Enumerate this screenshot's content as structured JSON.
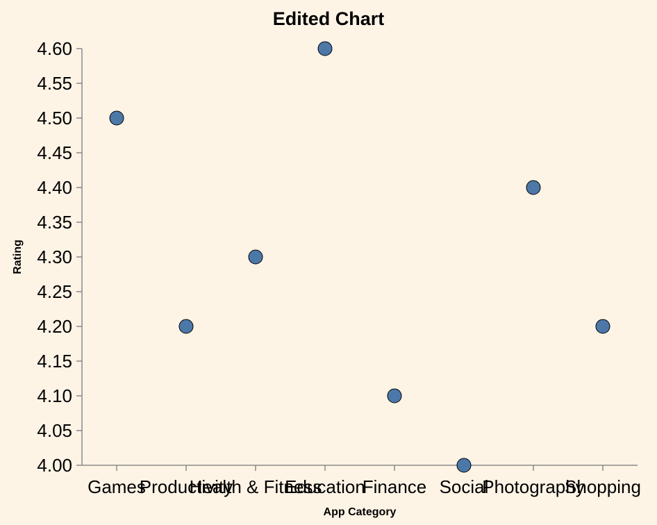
{
  "chart_data": {
    "type": "scatter",
    "title": "Edited Chart",
    "xlabel": "App Category",
    "ylabel": "Rating",
    "categories": [
      "Games",
      "Productivity",
      "Health & Fitness",
      "Education",
      "Finance",
      "Social",
      "Photography",
      "Shopping"
    ],
    "values": [
      4.5,
      4.2,
      4.3,
      4.6,
      4.1,
      4.0,
      4.4,
      4.2
    ],
    "ylim": [
      4.0,
      4.6
    ],
    "yticks": [
      "4.00",
      "4.05",
      "4.10",
      "4.15",
      "4.20",
      "4.25",
      "4.30",
      "4.35",
      "4.40",
      "4.45",
      "4.50",
      "4.55",
      "4.60"
    ],
    "grid": false,
    "colors": {
      "point": "#4c78a8",
      "background": "#fef4e6"
    }
  }
}
